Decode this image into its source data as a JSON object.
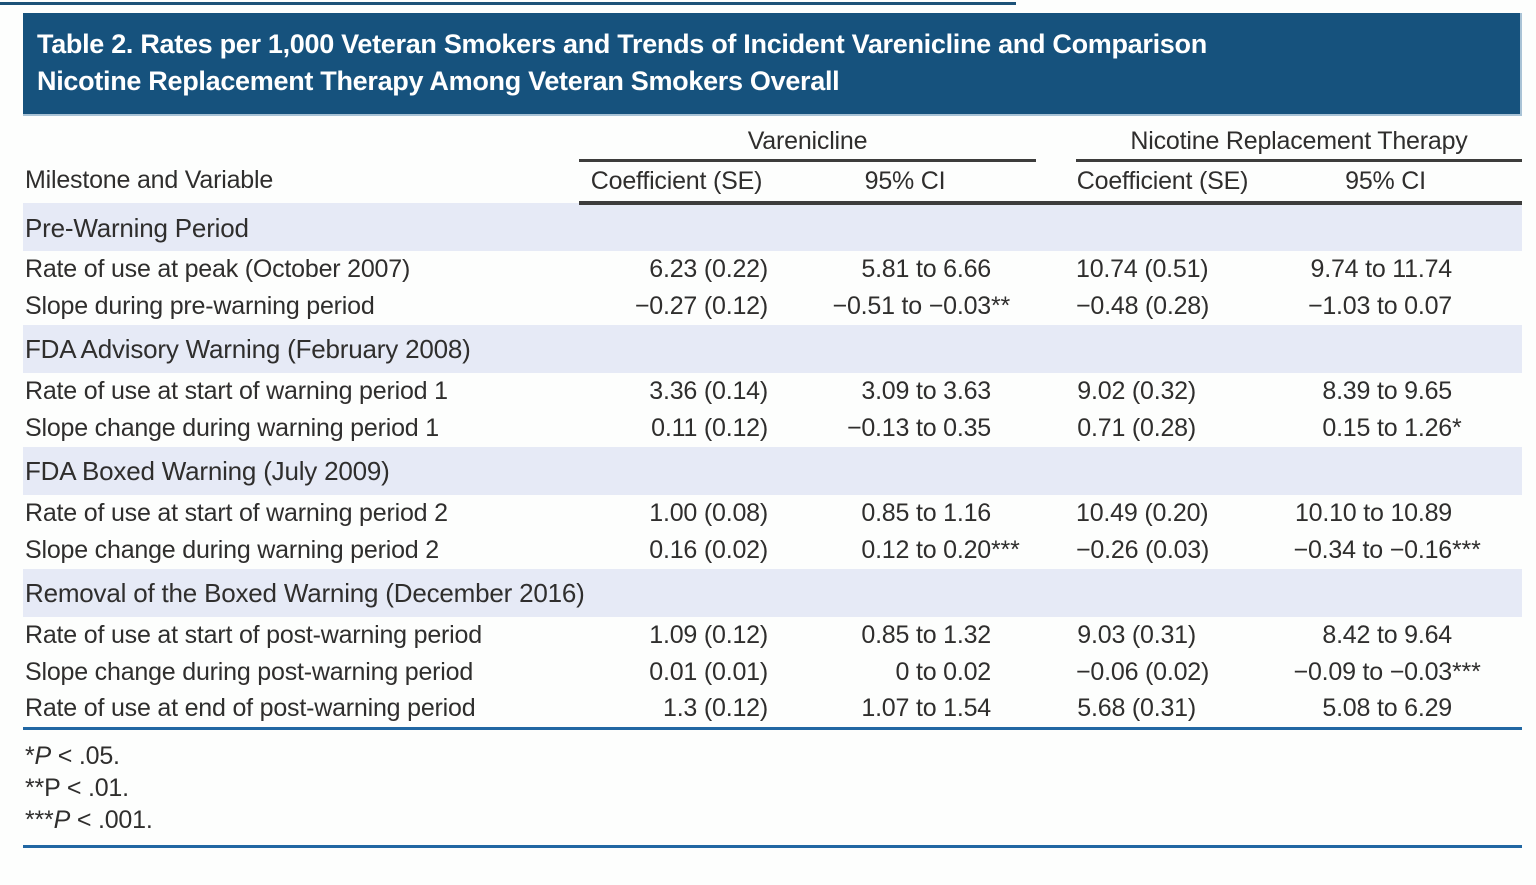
{
  "colors": {
    "titlebar-bg": "#16527d",
    "titlebar-border": "#a9c3d6",
    "section-bg": "#e6eaf6",
    "rule-dark": "#3d3d3c",
    "rule-blue": "#2167a3",
    "text": "#2f2e2d",
    "topline": "#1c5278"
  },
  "title": {
    "line1": "Table 2. Rates per 1,000 Veteran Smokers and Trends of Incident Varenicline and Comparison",
    "line2": "Nicotine Replacement Therapy Among Veteran Smokers Overall"
  },
  "table": {
    "group_headers": {
      "varenicline": "Varenicline",
      "nrt": "Nicotine Replacement Therapy"
    },
    "col_headers": {
      "milestone": "Milestone and Variable",
      "coef_se": "Coefficient (SE)",
      "ci": "95% CI"
    },
    "sections": [
      {
        "title": "Pre-Warning Period",
        "rows": [
          {
            "label": "Rate of use at peak (October 2007)",
            "var_coef_se": "6.23 (0.22)",
            "var_ci": "5.81 to 6.66",
            "nrt_coef_se": "10.74 (0.51)",
            "nrt_ci": "9.74 to 11.74"
          },
          {
            "label": "Slope during pre-warning period",
            "var_coef_se": "−0.27 (0.12)",
            "var_ci": "−0.51 to −0.03**",
            "nrt_coef_se": "−0.48 (0.28)",
            "nrt_ci": "−1.03 to 0.07"
          }
        ]
      },
      {
        "title": "FDA Advisory Warning (February 2008)",
        "rows": [
          {
            "label": "Rate of use at start of warning period 1",
            "var_coef_se": "3.36 (0.14)",
            "var_ci": "3.09 to 3.63",
            "nrt_coef_se": "9.02 (0.32)",
            "nrt_ci": "8.39 to 9.65"
          },
          {
            "label": "Slope change during warning period 1",
            "var_coef_se": "0.11 (0.12)",
            "var_ci": "−0.13 to 0.35",
            "nrt_coef_se": "0.71 (0.28)",
            "nrt_ci": "0.15 to 1.26*"
          }
        ]
      },
      {
        "title": "FDA Boxed Warning (July 2009)",
        "rows": [
          {
            "label": "Rate of use at start of warning period 2",
            "var_coef_se": "1.00 (0.08)",
            "var_ci": "0.85 to 1.16",
            "nrt_coef_se": "10.49 (0.20)",
            "nrt_ci": "10.10 to 10.89"
          },
          {
            "label": "Slope change during warning period 2",
            "var_coef_se": "0.16 (0.02)",
            "var_ci": "0.12 to 0.20***",
            "nrt_coef_se": "−0.26 (0.03)",
            "nrt_ci": "−0.34 to −0.16***"
          }
        ]
      },
      {
        "title": "Removal of the Boxed Warning (December 2016)",
        "rows": [
          {
            "label": "Rate of use at start of post-warning period",
            "var_coef_se": "1.09 (0.12)",
            "var_ci": "0.85 to 1.32",
            "nrt_coef_se": "9.03 (0.31)",
            "nrt_ci": "8.42 to 9.64"
          },
          {
            "label": "Slope change during post-warning period",
            "var_coef_se": "0.01 (0.01)",
            "var_ci": "0 to 0.02",
            "nrt_coef_se": "−0.06 (0.02)",
            "nrt_ci": "−0.09 to −0.03***"
          },
          {
            "label": "Rate of use at end of post-warning period",
            "var_coef_se": "1.3 (0.12)",
            "var_ci": "1.07 to 1.54",
            "nrt_coef_se": "5.68 (0.31)",
            "nrt_ci": "5.08 to 6.29"
          }
        ]
      }
    ]
  },
  "footnotes": [
    {
      "marker": "*",
      "p": "P",
      "italic_p": true,
      "text": "< .05."
    },
    {
      "marker": "**",
      "p": "P",
      "italic_p": false,
      "text": "< .01."
    },
    {
      "marker": "***",
      "p": "P",
      "italic_p": true,
      "text": "< .001."
    }
  ]
}
